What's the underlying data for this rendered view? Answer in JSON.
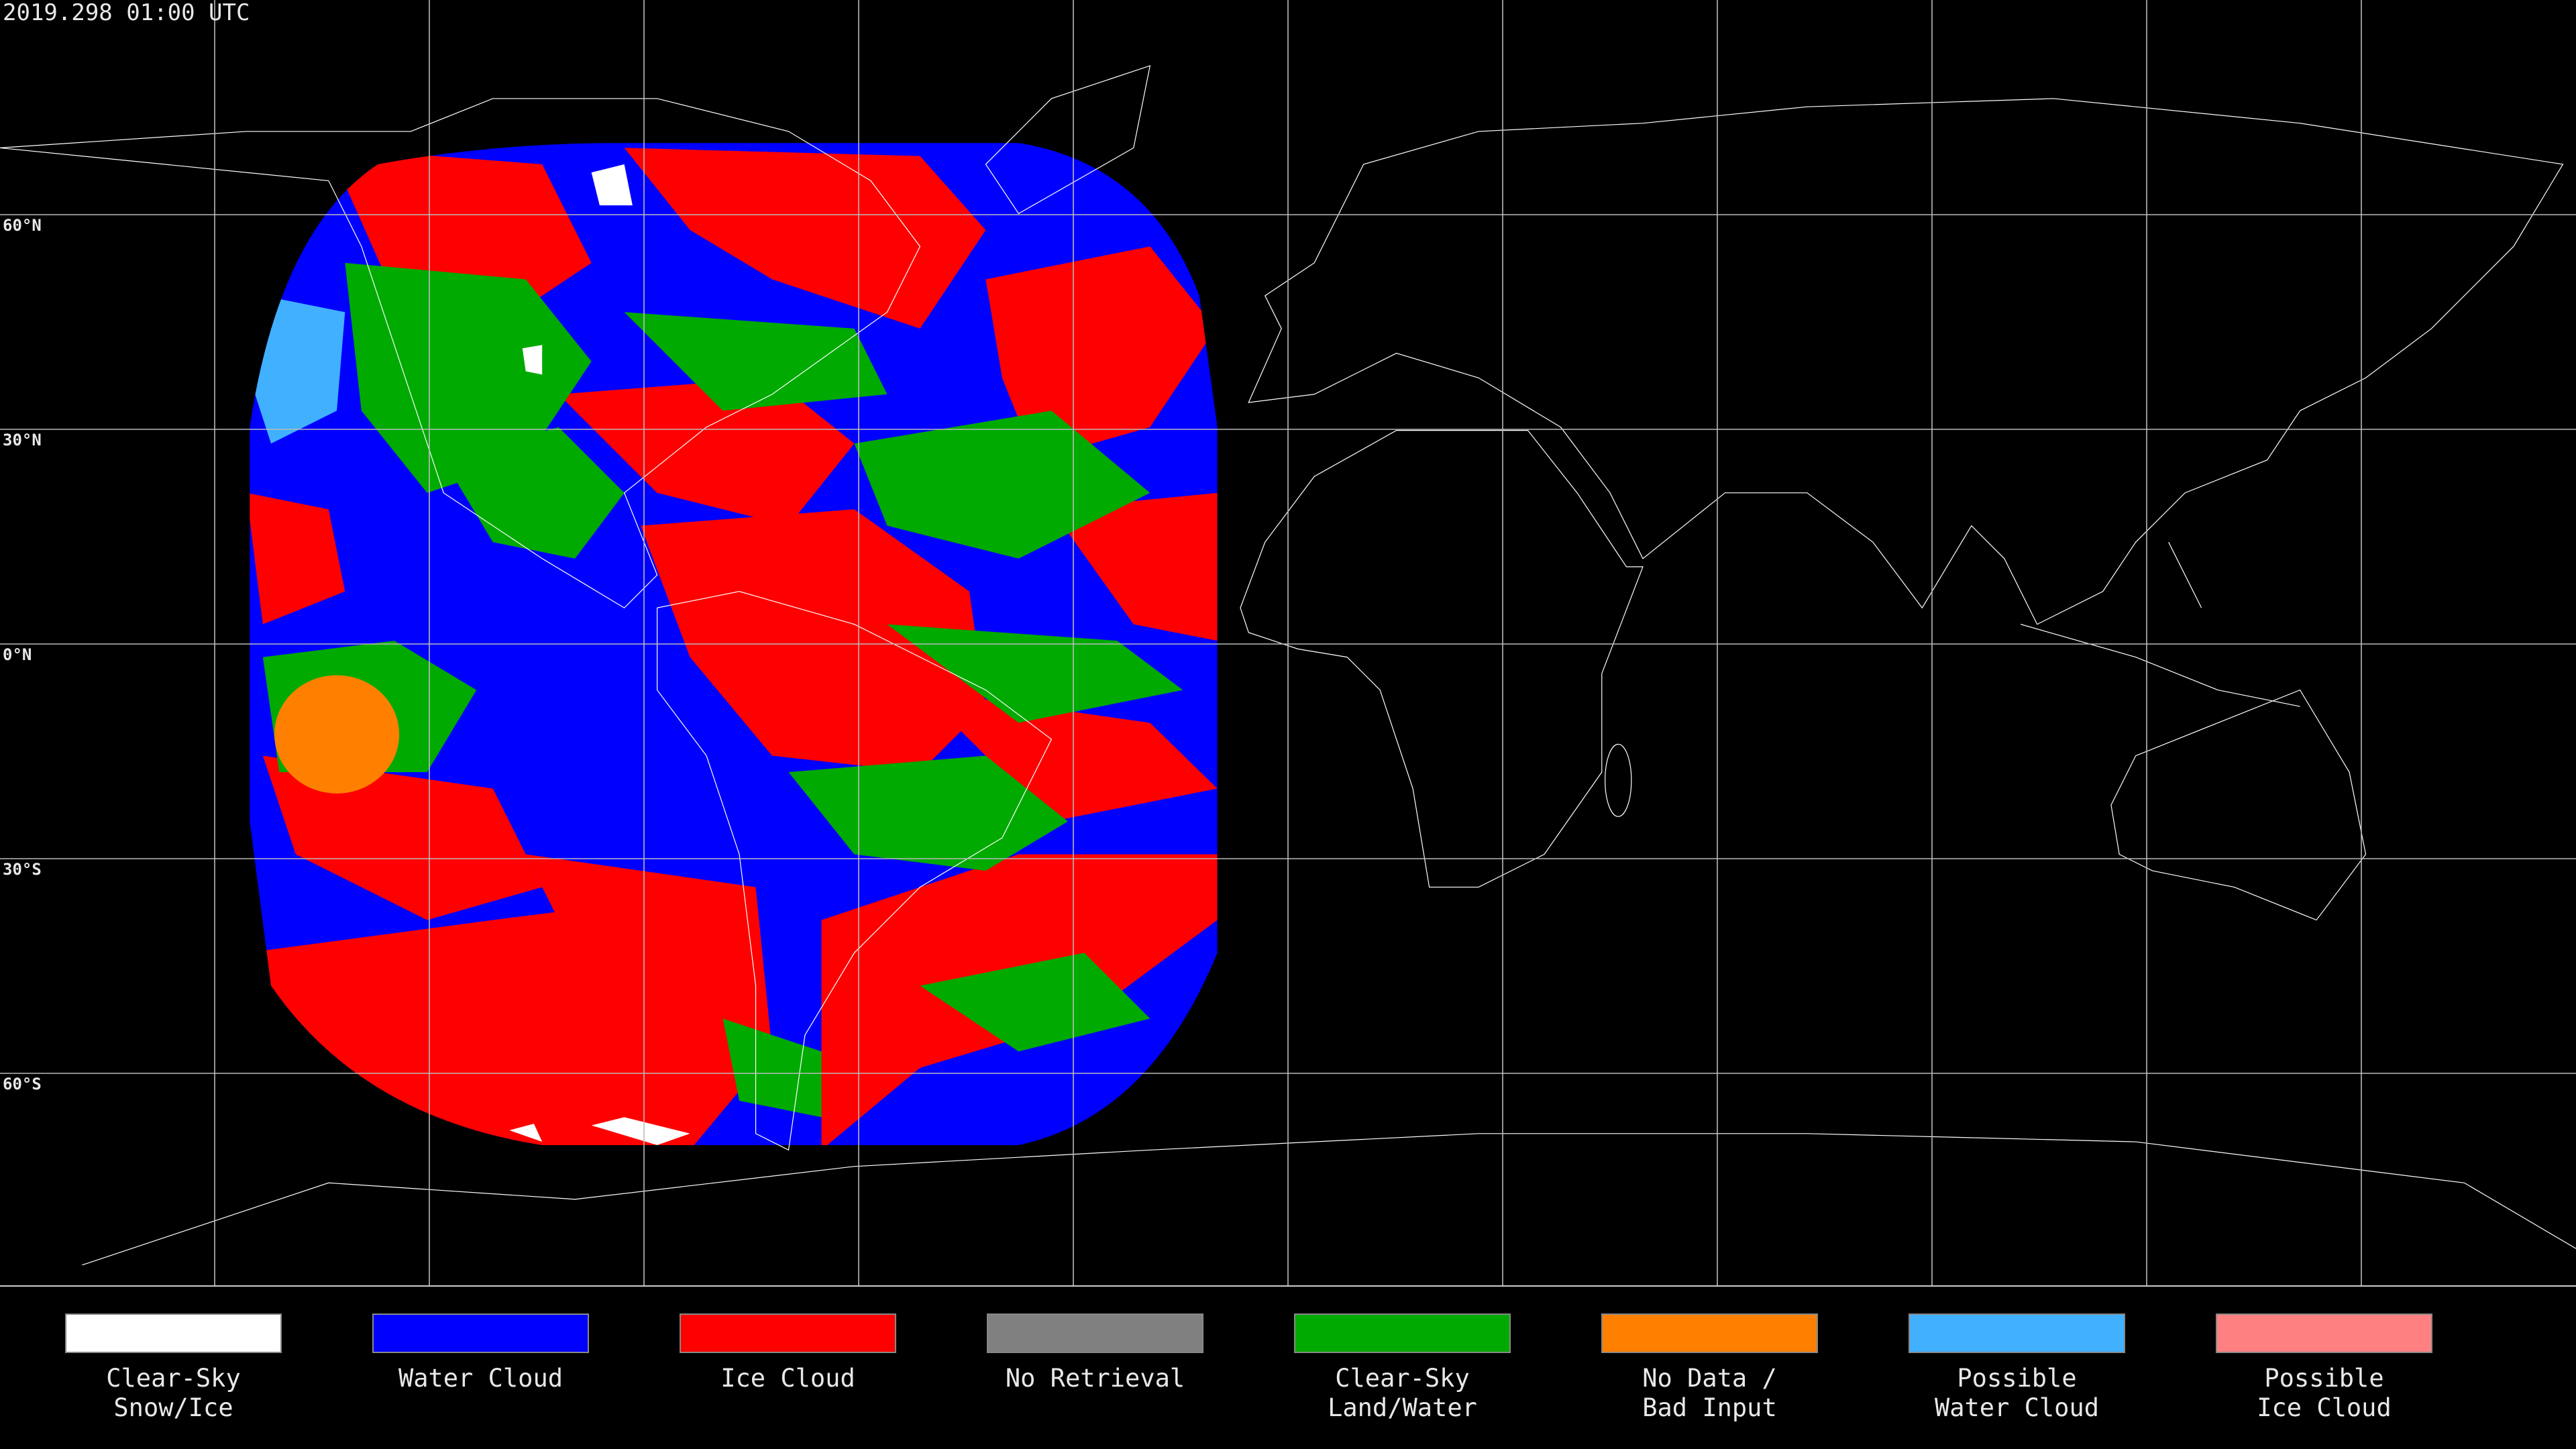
{
  "header": {
    "timestamp": "2019.298 01:00 UTC"
  },
  "map": {
    "lat_labels": [
      "60°N",
      "30°N",
      "0°N",
      "30°S",
      "60°S"
    ]
  },
  "legend": {
    "items": [
      {
        "label": [
          "Clear-Sky",
          "Snow/Ice"
        ],
        "color": "#ffffff"
      },
      {
        "label": [
          "Water Cloud"
        ],
        "color": "#0000ff"
      },
      {
        "label": [
          "Ice Cloud"
        ],
        "color": "#ff0000"
      },
      {
        "label": [
          "No Retrieval"
        ],
        "color": "#808080"
      },
      {
        "label": [
          "Clear-Sky",
          "Land/Water"
        ],
        "color": "#00aa00"
      },
      {
        "label": [
          "No Data /",
          "Bad Input"
        ],
        "color": "#ff8000"
      },
      {
        "label": [
          "Possible",
          "Water Cloud"
        ],
        "color": "#40b0ff"
      },
      {
        "label": [
          "Possible",
          "Ice Cloud"
        ],
        "color": "#ff8080"
      }
    ]
  }
}
